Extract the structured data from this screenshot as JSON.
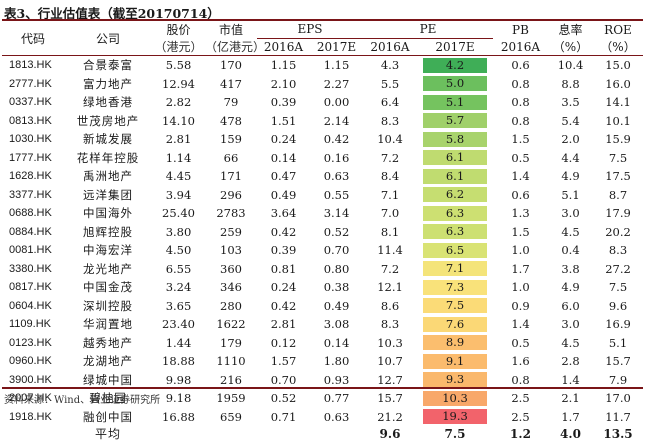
{
  "title": "表3、行业估值表（截至20170714）",
  "headers": {
    "code": "代码",
    "company": "公司",
    "price": "股价",
    "price_unit": "（港元）",
    "mcap": "市值",
    "mcap_unit": "（亿港元）",
    "eps": "EPS",
    "pe": "PE",
    "pb": "PB",
    "yield": "息率",
    "yield_unit": "（%）",
    "roe": "ROE",
    "roe_unit": "（%）",
    "y2016a": "2016A",
    "y2017e": "2017E"
  },
  "rows": [
    {
      "code": "1813.HK",
      "company": "合景泰富",
      "price": "5.58",
      "mcap": "170",
      "eps16": "1.15",
      "eps17": "1.15",
      "pe16": "4.3",
      "pe17": "4.2",
      "pb": "0.6",
      "yield": "10.4",
      "roe": "15.0",
      "heat": "#3fae57"
    },
    {
      "code": "2777.HK",
      "company": "富力地产",
      "price": "12.94",
      "mcap": "417",
      "eps16": "2.10",
      "eps17": "2.27",
      "pe16": "5.5",
      "pe17": "5.0",
      "pb": "0.8",
      "yield": "8.8",
      "roe": "16.0",
      "heat": "#6cbf5e"
    },
    {
      "code": "0337.HK",
      "company": "绿地香港",
      "price": "2.82",
      "mcap": "79",
      "eps16": "0.39",
      "eps17": "0.00",
      "pe16": "6.4",
      "pe17": "5.1",
      "pb": "0.8",
      "yield": "3.5",
      "roe": "14.1",
      "heat": "#75c35f"
    },
    {
      "code": "0813.HK",
      "company": "世茂房地产",
      "price": "14.10",
      "mcap": "478",
      "eps16": "1.51",
      "eps17": "2.14",
      "pe16": "8.3",
      "pe17": "5.7",
      "pb": "0.8",
      "yield": "5.4",
      "roe": "10.1",
      "heat": "#a0d06a"
    },
    {
      "code": "1030.HK",
      "company": "新城发展",
      "price": "2.81",
      "mcap": "159",
      "eps16": "0.24",
      "eps17": "0.42",
      "pe16": "10.4",
      "pe17": "5.8",
      "pb": "1.5",
      "yield": "2.0",
      "roe": "15.9",
      "heat": "#a8d36c"
    },
    {
      "code": "1777.HK",
      "company": "花样年控股",
      "price": "1.14",
      "mcap": "66",
      "eps16": "0.14",
      "eps17": "0.16",
      "pe16": "7.2",
      "pe17": "6.1",
      "pb": "0.5",
      "yield": "4.4",
      "roe": "7.5",
      "heat": "#bfdb70"
    },
    {
      "code": "1628.HK",
      "company": "禹洲地产",
      "price": "4.45",
      "mcap": "171",
      "eps16": "0.47",
      "eps17": "0.63",
      "pe16": "8.4",
      "pe17": "6.1",
      "pb": "1.4",
      "yield": "4.9",
      "roe": "17.5",
      "heat": "#c0dc70"
    },
    {
      "code": "3377.HK",
      "company": "远洋集团",
      "price": "3.94",
      "mcap": "296",
      "eps16": "0.49",
      "eps17": "0.55",
      "pe16": "7.1",
      "pe17": "6.2",
      "pb": "0.6",
      "yield": "5.1",
      "roe": "8.7",
      "heat": "#c6de71"
    },
    {
      "code": "0688.HK",
      "company": "中国海外",
      "price": "25.40",
      "mcap": "2783",
      "eps16": "3.64",
      "eps17": "3.14",
      "pe16": "7.0",
      "pe17": "6.3",
      "pb": "1.3",
      "yield": "3.0",
      "roe": "17.9",
      "heat": "#cde072"
    },
    {
      "code": "0884.HK",
      "company": "旭辉控股",
      "price": "3.80",
      "mcap": "259",
      "eps16": "0.42",
      "eps17": "0.52",
      "pe16": "8.1",
      "pe17": "6.3",
      "pb": "1.5",
      "yield": "4.5",
      "roe": "20.2",
      "heat": "#cde072"
    },
    {
      "code": "0081.HK",
      "company": "中海宏洋",
      "price": "4.50",
      "mcap": "103",
      "eps16": "0.39",
      "eps17": "0.70",
      "pe16": "11.4",
      "pe17": "6.5",
      "pb": "1.0",
      "yield": "0.4",
      "roe": "8.3",
      "heat": "#d9e374"
    },
    {
      "code": "3380.HK",
      "company": "龙光地产",
      "price": "6.55",
      "mcap": "360",
      "eps16": "0.81",
      "eps17": "0.80",
      "pe16": "7.2",
      "pe17": "7.1",
      "pb": "1.7",
      "yield": "3.8",
      "roe": "27.2",
      "heat": "#f4e47a"
    },
    {
      "code": "0817.HK",
      "company": "中国金茂",
      "price": "3.24",
      "mcap": "346",
      "eps16": "0.24",
      "eps17": "0.38",
      "pe16": "12.1",
      "pe17": "7.3",
      "pb": "1.0",
      "yield": "4.9",
      "roe": "7.5",
      "heat": "#f9e27a"
    },
    {
      "code": "0604.HK",
      "company": "深圳控股",
      "price": "3.65",
      "mcap": "280",
      "eps16": "0.42",
      "eps17": "0.49",
      "pe16": "8.6",
      "pe17": "7.5",
      "pb": "0.9",
      "yield": "6.0",
      "roe": "9.6",
      "heat": "#fbdb77"
    },
    {
      "code": "1109.HK",
      "company": "华润置地",
      "price": "23.40",
      "mcap": "1622",
      "eps16": "2.81",
      "eps17": "3.08",
      "pe16": "8.3",
      "pe17": "7.6",
      "pb": "1.4",
      "yield": "3.0",
      "roe": "16.9",
      "heat": "#fbd876"
    },
    {
      "code": "0123.HK",
      "company": "越秀地产",
      "price": "1.44",
      "mcap": "179",
      "eps16": "0.12",
      "eps17": "0.14",
      "pe16": "10.3",
      "pe17": "8.9",
      "pb": "0.5",
      "yield": "4.5",
      "roe": "5.1",
      "heat": "#fbbe6e"
    },
    {
      "code": "0960.HK",
      "company": "龙湖地产",
      "price": "18.88",
      "mcap": "1110",
      "eps16": "1.57",
      "eps17": "1.80",
      "pe16": "10.7",
      "pe17": "9.1",
      "pb": "1.6",
      "yield": "2.8",
      "roe": "15.7",
      "heat": "#fbbb6d"
    },
    {
      "code": "3900.HK",
      "company": "绿城中国",
      "price": "9.98",
      "mcap": "216",
      "eps16": "0.70",
      "eps17": "0.93",
      "pe16": "12.7",
      "pe17": "9.3",
      "pb": "0.8",
      "yield": "1.4",
      "roe": "7.9",
      "heat": "#fab86c"
    },
    {
      "code": "2007.HK",
      "company": "碧桂园",
      "price": "9.18",
      "mcap": "1959",
      "eps16": "0.52",
      "eps17": "0.77",
      "pe16": "15.7",
      "pe17": "10.3",
      "pb": "2.5",
      "yield": "2.1",
      "roe": "17.0",
      "heat": "#f8a86a"
    },
    {
      "code": "1918.HK",
      "company": "融创中国",
      "price": "16.88",
      "mcap": "659",
      "eps16": "0.71",
      "eps17": "0.63",
      "pe16": "21.2",
      "pe17": "19.3",
      "pb": "2.5",
      "yield": "1.7",
      "roe": "11.7",
      "heat": "#f2636b"
    }
  ],
  "average": {
    "label": "平均",
    "pe16": "9.6",
    "pe17": "7.5",
    "pb": "1.2",
    "yield": "4.0",
    "roe": "13.5"
  },
  "source": "资料来源：Wind、兴业证券研究所"
}
